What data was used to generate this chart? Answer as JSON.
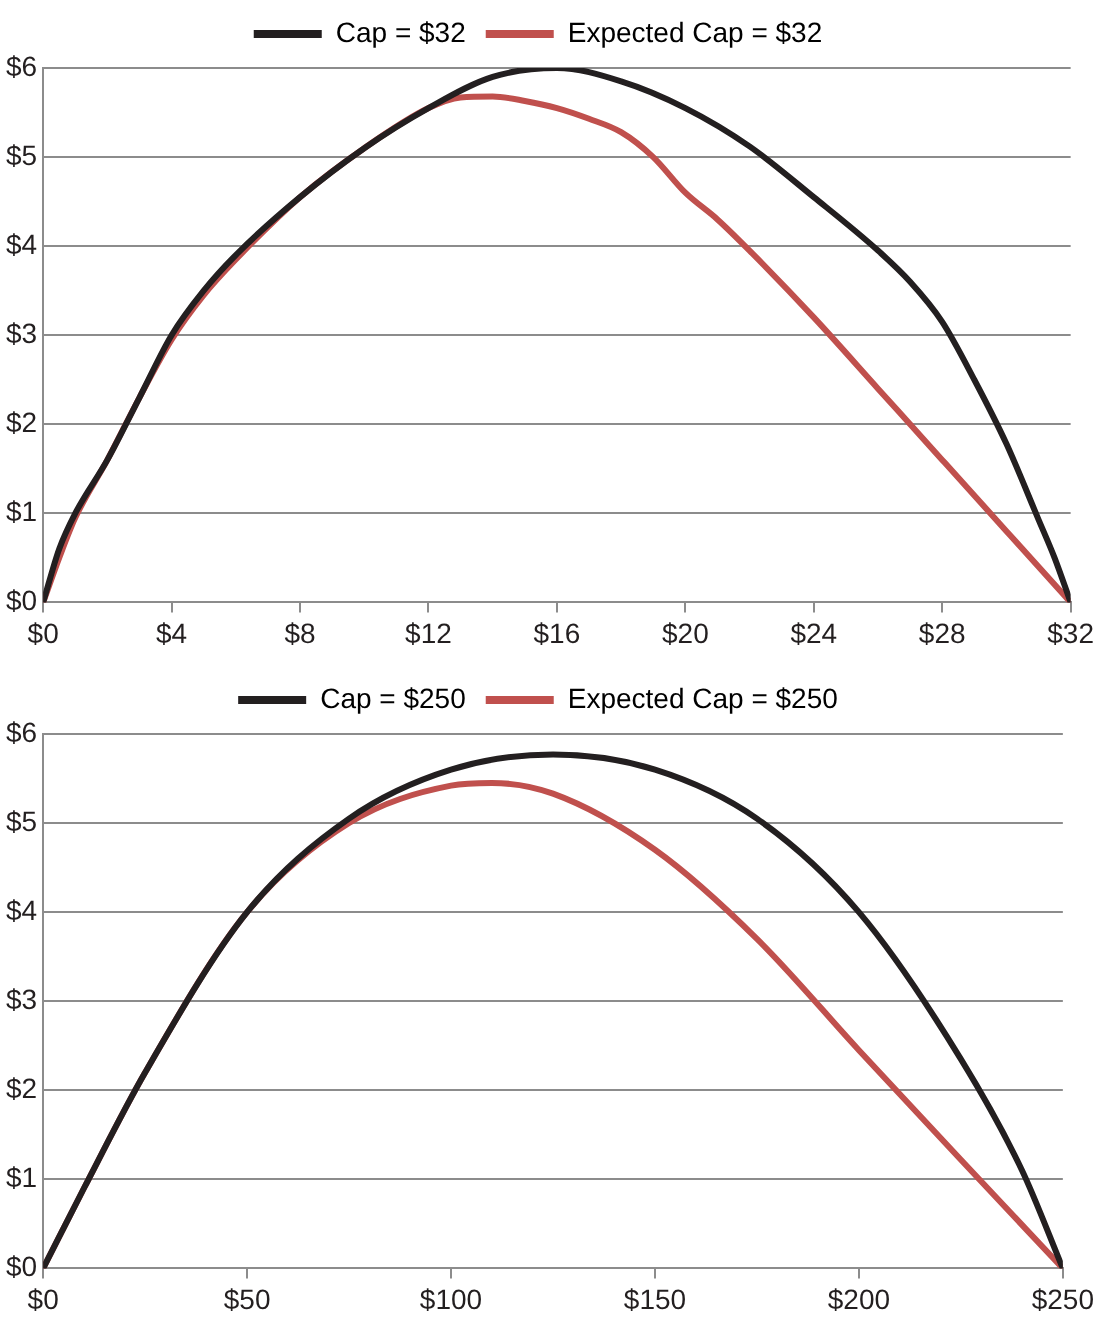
{
  "chart_data": [
    {
      "type": "line",
      "x": [
        0,
        0.5,
        1,
        2,
        3,
        4,
        5,
        6,
        8,
        10,
        12,
        14,
        16,
        18,
        20,
        22,
        24,
        26,
        27,
        28,
        29,
        30,
        31,
        31.5,
        32
      ],
      "series": [
        {
          "name": "Cap = $32",
          "color": "#231f20",
          "values": [
            0,
            0.6,
            1.0,
            1.6,
            2.3,
            3.0,
            3.5,
            3.9,
            4.55,
            5.1,
            5.55,
            5.9,
            6.0,
            5.85,
            5.55,
            5.12,
            4.55,
            3.95,
            3.6,
            3.15,
            2.5,
            1.78,
            0.93,
            0.5,
            0
          ]
        },
        {
          "name": "Expected Cap = $32",
          "color": "#c0504d",
          "x": [
            0,
            0.5,
            1,
            2,
            3,
            4,
            5,
            6,
            8,
            10,
            12,
            13,
            14,
            15,
            16,
            17,
            18,
            19,
            20,
            21,
            22,
            24,
            26,
            28,
            30,
            32
          ],
          "values": [
            0,
            0.5,
            0.95,
            1.6,
            2.3,
            2.95,
            3.45,
            3.85,
            4.55,
            5.1,
            5.55,
            5.67,
            5.68,
            5.63,
            5.55,
            5.43,
            5.28,
            5.0,
            4.6,
            4.3,
            3.95,
            3.2,
            2.4,
            1.6,
            0.8,
            0
          ]
        }
      ],
      "xlim": [
        0,
        32
      ],
      "xticks": [
        {
          "value": 0,
          "label": "$0"
        },
        {
          "value": 4,
          "label": "$4"
        },
        {
          "value": 8,
          "label": "$8"
        },
        {
          "value": 12,
          "label": "$12"
        },
        {
          "value": 16,
          "label": "$16"
        },
        {
          "value": 20,
          "label": "$20"
        },
        {
          "value": 24,
          "label": "$24"
        },
        {
          "value": 28,
          "label": "$28"
        },
        {
          "value": 32,
          "label": "$32"
        }
      ],
      "ylim": [
        0,
        6
      ],
      "yticks": [
        {
          "value": 0,
          "label": "$0"
        },
        {
          "value": 1,
          "label": "$1"
        },
        {
          "value": 2,
          "label": "$2"
        },
        {
          "value": 3,
          "label": "$3"
        },
        {
          "value": 4,
          "label": "$4"
        },
        {
          "value": 5,
          "label": "$5"
        },
        {
          "value": 6,
          "label": "$6"
        }
      ],
      "grid": "y",
      "legend": "top",
      "marker": "none",
      "line_style": "solid"
    },
    {
      "type": "line",
      "x": [
        0,
        10,
        25,
        50,
        75,
        100,
        125,
        150,
        175,
        200,
        225,
        240,
        250
      ],
      "series": [
        {
          "name": "Cap = $250",
          "color": "#231f20",
          "values": [
            0,
            0.9,
            2.2,
            4.0,
            5.05,
            5.6,
            5.77,
            5.6,
            5.05,
            4.0,
            2.35,
            1.1,
            0
          ]
        },
        {
          "name": "Expected Cap = $250",
          "color": "#c0504d",
          "x": [
            0,
            10,
            25,
            50,
            75,
            100,
            110,
            125,
            150,
            175,
            200,
            225,
            250
          ],
          "values": [
            0,
            0.9,
            2.2,
            4.0,
            5.0,
            5.42,
            5.45,
            5.33,
            4.7,
            3.7,
            2.45,
            1.22,
            0
          ]
        }
      ],
      "xlim": [
        0,
        250
      ],
      "xticks": [
        {
          "value": 0,
          "label": "$0"
        },
        {
          "value": 50,
          "label": "$50"
        },
        {
          "value": 100,
          "label": "$100"
        },
        {
          "value": 150,
          "label": "$150"
        },
        {
          "value": 200,
          "label": "$200"
        },
        {
          "value": 250,
          "label": "$250"
        }
      ],
      "ylim": [
        0,
        6
      ],
      "yticks": [
        {
          "value": 0,
          "label": "$0"
        },
        {
          "value": 1,
          "label": "$1"
        },
        {
          "value": 2,
          "label": "$2"
        },
        {
          "value": 3,
          "label": "$3"
        },
        {
          "value": 4,
          "label": "$4"
        },
        {
          "value": 5,
          "label": "$5"
        },
        {
          "value": 6,
          "label": "$6"
        }
      ],
      "grid": "y",
      "legend": "top",
      "marker": "none",
      "line_style": "solid"
    }
  ]
}
